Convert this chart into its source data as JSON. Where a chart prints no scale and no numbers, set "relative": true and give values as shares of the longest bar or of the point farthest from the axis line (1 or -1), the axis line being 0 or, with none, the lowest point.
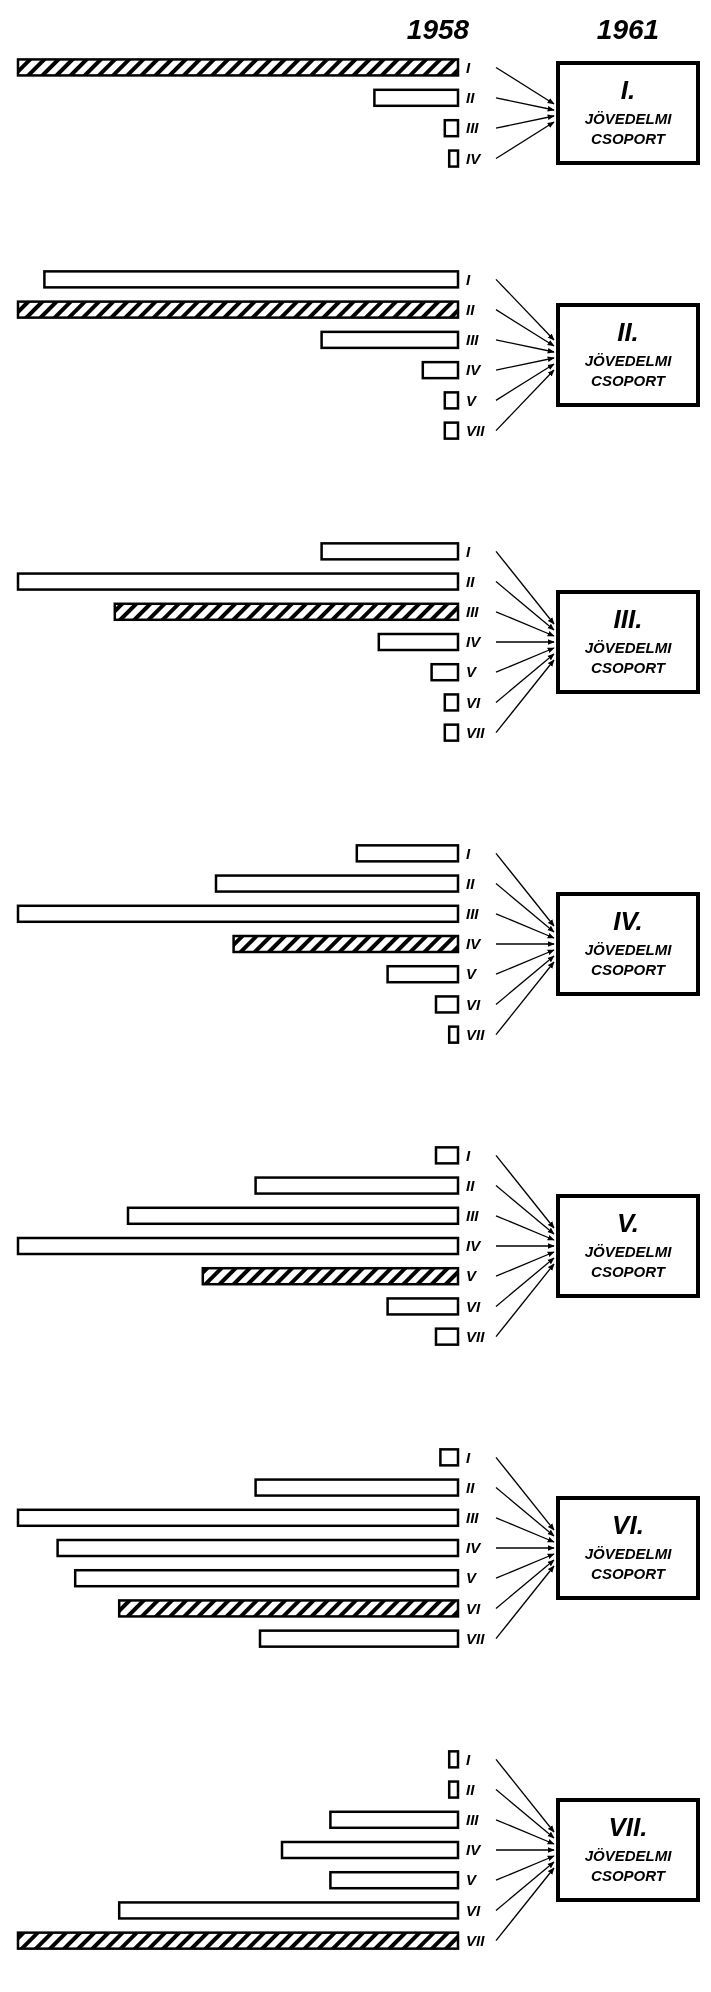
{
  "chart_data": [
    {
      "type": "bar",
      "orientation": "horizontal",
      "relative": true,
      "annotations": [
        "1958",
        "1961",
        "I. JÖVEDELMI CSOPORT"
      ],
      "categories": [
        "I",
        "II",
        "III",
        "IV"
      ],
      "values": [
        1,
        0.19,
        0.03,
        0.02
      ],
      "colors": [
        "#000000",
        "#ffffff",
        "#ffffff",
        "#ffffff"
      ]
    },
    {
      "type": "bar",
      "orientation": "horizontal",
      "relative": true,
      "annotations": [
        "II. JÖVEDELMI CSOPORT"
      ],
      "categories": [
        "I",
        "II",
        "III",
        "IV",
        "V",
        "VII"
      ],
      "values": [
        0.94,
        1,
        0.31,
        0.08,
        0.03,
        0.03
      ],
      "colors": [
        "#ffffff",
        "#000000",
        "#ffffff",
        "#ffffff",
        "#ffffff",
        "#ffffff"
      ]
    },
    {
      "type": "bar",
      "orientation": "horizontal",
      "relative": true,
      "annotations": [
        "III. JÖVEDELMI CSOPORT"
      ],
      "categories": [
        "I",
        "II",
        "III",
        "IV",
        "V",
        "VI",
        "VII"
      ],
      "values": [
        0.31,
        1,
        0.78,
        0.18,
        0.06,
        0.03,
        0.03
      ],
      "colors": [
        "#ffffff",
        "#ffffff",
        "#000000",
        "#ffffff",
        "#ffffff",
        "#ffffff",
        "#ffffff"
      ]
    },
    {
      "type": "bar",
      "orientation": "horizontal",
      "relative": true,
      "annotations": [
        "IV. JÖVEDELMI CSOPORT"
      ],
      "categories": [
        "I",
        "II",
        "III",
        "IV",
        "V",
        "VI",
        "VII"
      ],
      "values": [
        0.23,
        0.55,
        1,
        0.51,
        0.16,
        0.05,
        0.02
      ],
      "colors": [
        "#ffffff",
        "#ffffff",
        "#ffffff",
        "#000000",
        "#ffffff",
        "#ffffff",
        "#ffffff"
      ]
    },
    {
      "type": "bar",
      "orientation": "horizontal",
      "relative": true,
      "annotations": [
        "V. JÖVEDELMI CSOPORT"
      ],
      "categories": [
        "I",
        "II",
        "III",
        "IV",
        "V",
        "VI",
        "VII"
      ],
      "values": [
        0.05,
        0.46,
        0.75,
        1,
        0.58,
        0.16,
        0.05
      ],
      "colors": [
        "#ffffff",
        "#ffffff",
        "#ffffff",
        "#ffffff",
        "#000000",
        "#ffffff",
        "#ffffff"
      ]
    },
    {
      "type": "bar",
      "orientation": "horizontal",
      "relative": true,
      "annotations": [
        "VI. JÖVEDELMI CSOPORT"
      ],
      "categories": [
        "I",
        "II",
        "III",
        "IV",
        "V",
        "VI",
        "VII"
      ],
      "values": [
        0.04,
        0.46,
        1,
        0.91,
        0.87,
        0.77,
        0.45
      ],
      "colors": [
        "#ffffff",
        "#ffffff",
        "#ffffff",
        "#ffffff",
        "#ffffff",
        "#000000",
        "#ffffff"
      ]
    },
    {
      "type": "bar",
      "orientation": "horizontal",
      "relative": true,
      "annotations": [
        "VII. JÖVEDELMI CSOPORT"
      ],
      "categories": [
        "I",
        "II",
        "III",
        "IV",
        "V",
        "VI",
        "VII"
      ],
      "values": [
        0.02,
        0.02,
        0.29,
        0.4,
        0.29,
        0.77,
        1
      ],
      "colors": [
        "#ffffff",
        "#ffffff",
        "#ffffff",
        "#ffffff",
        "#ffffff",
        "#ffffff",
        "#000000"
      ]
    }
  ]
}
